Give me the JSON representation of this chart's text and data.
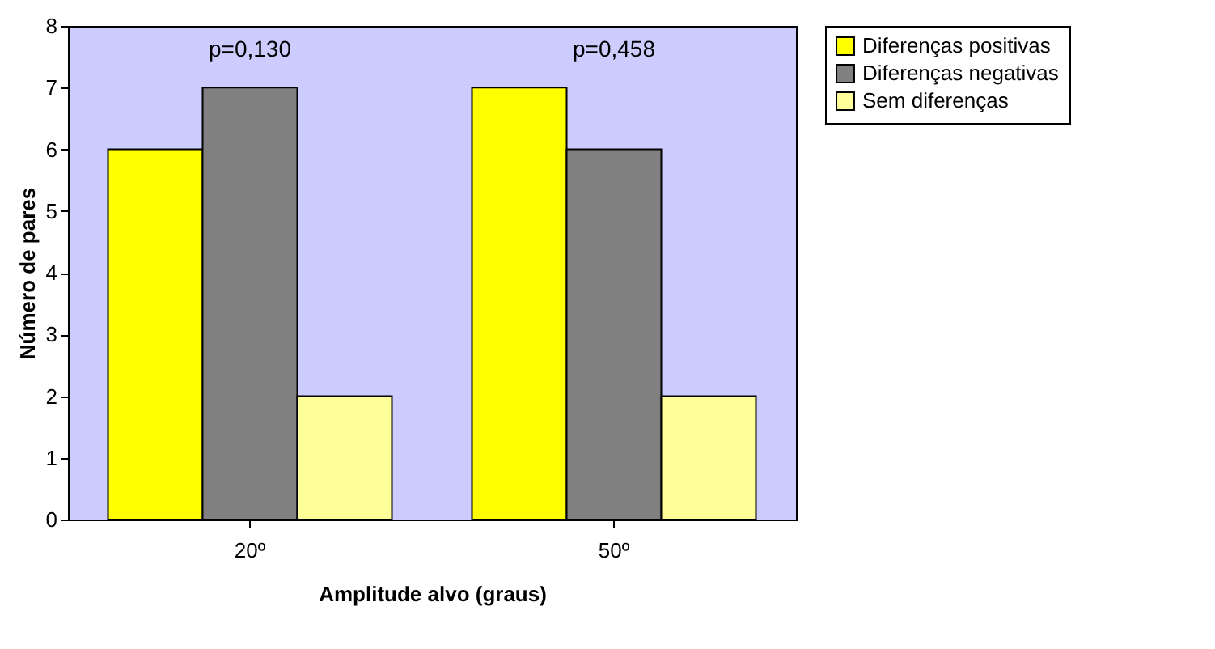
{
  "chart_data": {
    "type": "bar",
    "xlabel": "Amplitude alvo (graus)",
    "ylabel": "Número de pares",
    "categories": [
      "20º",
      "50º"
    ],
    "series": [
      {
        "name": "Diferenças positivas",
        "color": "#ffff00",
        "values": [
          6,
          7
        ]
      },
      {
        "name": "Diferenças negativas",
        "color": "#808080",
        "values": [
          7,
          6
        ]
      },
      {
        "name": "Sem diferenças",
        "color": "#ffff99",
        "values": [
          2,
          2
        ]
      }
    ],
    "ylim": [
      0,
      8
    ],
    "yticks": [
      0,
      1,
      2,
      3,
      4,
      5,
      6,
      7,
      8
    ],
    "grid": false,
    "legend": "right",
    "annotations": [
      "p=0,130",
      "p=0,458"
    ]
  }
}
